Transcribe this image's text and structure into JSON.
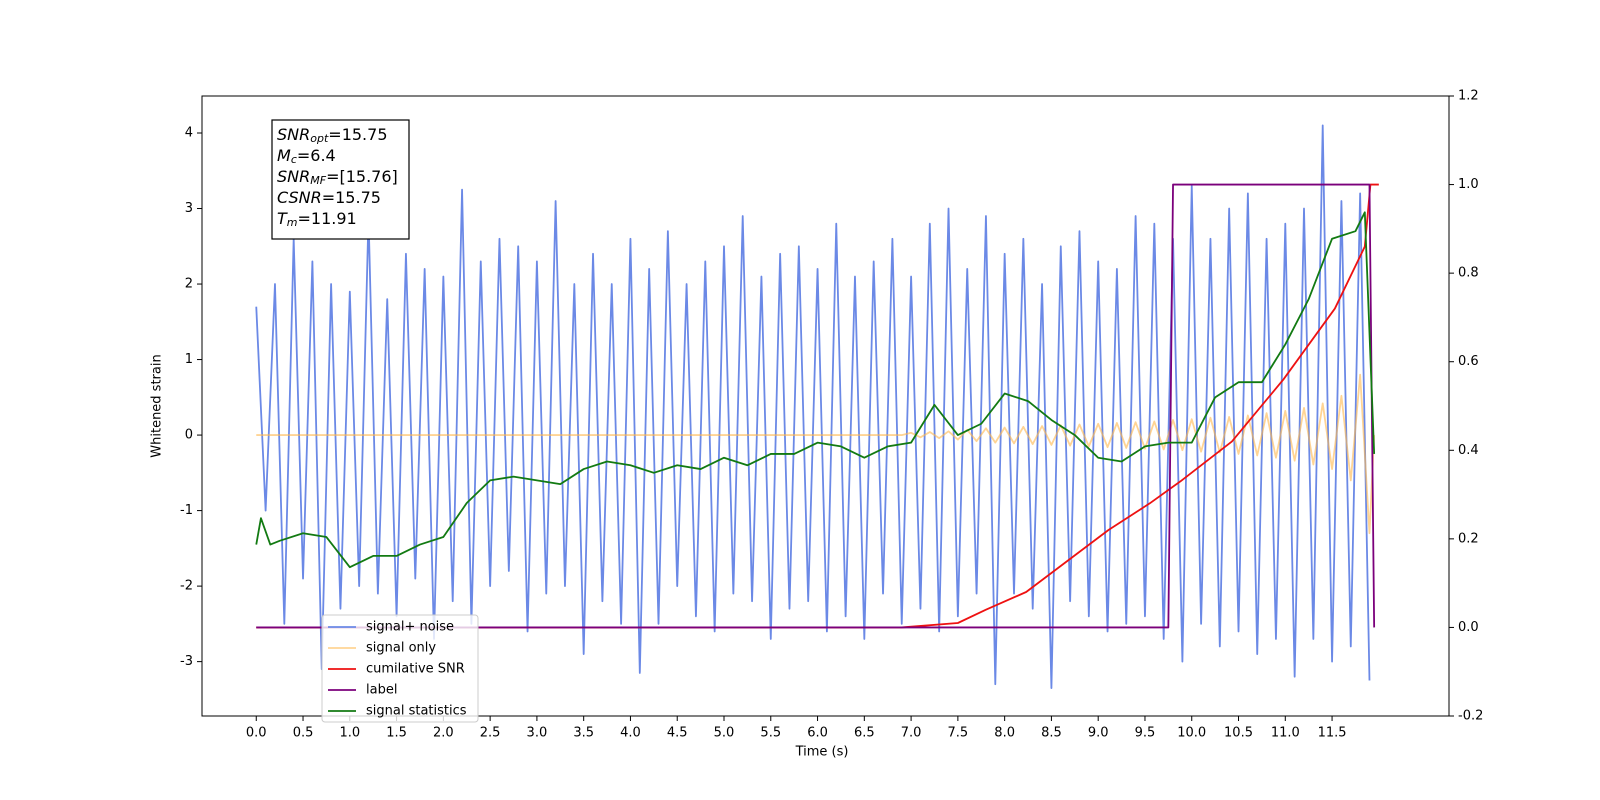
{
  "chart_data": {
    "type": "line",
    "xlabel": "Time (s)",
    "ylabel": "Whitened strain",
    "xlim": [
      -0.58,
      12.75
    ],
    "ylim": [
      -3.72,
      4.49
    ],
    "y2lim": [
      -0.2,
      1.2
    ],
    "xticks": [
      {
        "value": 0,
        "label": "0.0"
      },
      0.5,
      {
        "value": 1,
        "label": "1.0"
      },
      1.5,
      {
        "value": 2,
        "label": "2.0"
      },
      2.5,
      {
        "value": 3,
        "label": "3.0"
      },
      3.5,
      {
        "value": 4,
        "label": "4.0"
      },
      4.5,
      {
        "value": 5,
        "label": "5.0"
      },
      5.5,
      {
        "value": 6,
        "label": "6.0"
      },
      6.5,
      {
        "value": 7,
        "label": "7.0"
      },
      7.5,
      {
        "value": 8,
        "label": "8.0"
      },
      8.5,
      {
        "value": 9,
        "label": "9.0"
      },
      9.5,
      {
        "value": 10,
        "label": "10.0"
      },
      10.5,
      {
        "value": 11,
        "label": "11.0"
      },
      11.5
    ],
    "yticks": [
      -3,
      -2,
      -1,
      0,
      1,
      2,
      3,
      4
    ],
    "y2ticks": [
      -0.2,
      {
        "value": 0,
        "label": "0.0"
      },
      0.2,
      0.4,
      0.6,
      0.8,
      {
        "value": 1,
        "label": "1.0"
      },
      1.2
    ],
    "legend_loc": "lower left",
    "annotations": [
      {
        "base": "SNR",
        "sub": "opt",
        "text": "=15.75"
      },
      {
        "base": "M",
        "sub": "c",
        "text": "=6.4"
      },
      {
        "base": "SNR",
        "sub": "MF",
        "text": "=[15.76]"
      },
      {
        "base": "CSNR",
        "text": "=15.75"
      },
      {
        "base": "T",
        "sub": "m",
        "text": "=11.91"
      }
    ],
    "series": [
      {
        "name": "signal+ noise",
        "color": "#6b89e6",
        "x": [
          0.0,
          0.1,
          0.2,
          0.3,
          0.4,
          0.5,
          0.6,
          0.7,
          0.8,
          0.9,
          1.0,
          1.1,
          1.2,
          1.3,
          1.4,
          1.5,
          1.6,
          1.7,
          1.8,
          1.9,
          2.0,
          2.1,
          2.2,
          2.3,
          2.4,
          2.5,
          2.6,
          2.7,
          2.8,
          2.9,
          3.0,
          3.1,
          3.2,
          3.3,
          3.4,
          3.5,
          3.6,
          3.7,
          3.8,
          3.9,
          4.0,
          4.1,
          4.2,
          4.3,
          4.4,
          4.5,
          4.6,
          4.7,
          4.8,
          4.9,
          5.0,
          5.1,
          5.2,
          5.3,
          5.4,
          5.5,
          5.6,
          5.7,
          5.8,
          5.9,
          6.0,
          6.1,
          6.2,
          6.3,
          6.4,
          6.5,
          6.6,
          6.7,
          6.8,
          6.9,
          7.0,
          7.1,
          7.2,
          7.3,
          7.4,
          7.5,
          7.6,
          7.7,
          7.8,
          7.9,
          8.0,
          8.1,
          8.2,
          8.3,
          8.4,
          8.5,
          8.6,
          8.7,
          8.8,
          8.9,
          9.0,
          9.1,
          9.2,
          9.3,
          9.4,
          9.5,
          9.6,
          9.7,
          9.8,
          9.9,
          10.0,
          10.1,
          10.2,
          10.3,
          10.4,
          10.5,
          10.6,
          10.7,
          10.8,
          10.9,
          11.0,
          11.1,
          11.2,
          11.3,
          11.4,
          11.5,
          11.6,
          11.7,
          11.8,
          11.9
        ],
        "values": [
          1.7,
          -1.0,
          2.0,
          -2.5,
          2.6,
          -1.9,
          2.3,
          -3.1,
          2.0,
          -2.3,
          1.9,
          -2.0,
          2.9,
          -2.1,
          1.8,
          -2.4,
          2.4,
          -1.9,
          2.2,
          -2.7,
          2.1,
          -2.2,
          3.25,
          -2.5,
          2.3,
          -2.0,
          2.6,
          -1.8,
          2.5,
          -2.6,
          2.3,
          -2.1,
          3.1,
          -2.0,
          2.0,
          -2.9,
          2.4,
          -2.2,
          2.0,
          -2.5,
          2.6,
          -3.15,
          2.2,
          -2.5,
          2.7,
          -2.0,
          2.0,
          -2.4,
          2.3,
          -2.6,
          2.5,
          -2.1,
          2.9,
          -2.2,
          2.1,
          -2.7,
          2.4,
          -2.3,
          2.5,
          -2.2,
          2.2,
          -2.6,
          2.8,
          -2.4,
          2.1,
          -2.7,
          2.3,
          -2.1,
          2.6,
          -2.5,
          2.1,
          -2.3,
          2.8,
          -2.6,
          3.0,
          -2.4,
          2.2,
          -2.1,
          2.9,
          -3.3,
          2.4,
          -2.1,
          2.6,
          -2.3,
          2.0,
          -3.35,
          2.5,
          -2.2,
          2.7,
          -2.4,
          2.3,
          -2.6,
          2.2,
          -2.5,
          2.9,
          -2.4,
          2.8,
          -2.7,
          2.6,
          -3.0,
          3.3,
          -2.5,
          2.6,
          -2.8,
          3.0,
          -2.6,
          3.2,
          -2.9,
          2.6,
          -2.7,
          2.8,
          -3.2,
          3.0,
          -2.7,
          4.1,
          -3.0,
          3.1,
          -2.8,
          3.2,
          -3.25
        ]
      },
      {
        "name": "signal only",
        "color": "#ffb84d",
        "x": [
          0.0,
          6.9,
          7.0,
          7.1,
          7.2,
          7.3,
          7.4,
          7.5,
          7.6,
          7.7,
          7.8,
          7.9,
          8.0,
          8.1,
          8.2,
          8.3,
          8.4,
          8.5,
          8.6,
          8.7,
          8.8,
          8.9,
          9.0,
          9.1,
          9.2,
          9.3,
          9.4,
          9.5,
          9.6,
          9.7,
          9.8,
          9.9,
          10.0,
          10.1,
          10.2,
          10.3,
          10.4,
          10.5,
          10.6,
          10.7,
          10.8,
          10.9,
          11.0,
          11.1,
          11.2,
          11.3,
          11.4,
          11.5,
          11.6,
          11.7,
          11.8,
          11.9,
          11.95
        ],
        "values": [
          0,
          0,
          0.03,
          -0.03,
          0.04,
          -0.04,
          0.05,
          -0.06,
          0.07,
          -0.08,
          0.09,
          -0.1,
          0.1,
          -0.11,
          0.11,
          -0.12,
          0.12,
          -0.13,
          0.13,
          -0.14,
          0.14,
          -0.15,
          0.15,
          -0.16,
          0.16,
          -0.17,
          0.17,
          -0.18,
          0.18,
          -0.19,
          0.2,
          -0.2,
          0.21,
          -0.22,
          0.23,
          -0.23,
          0.24,
          -0.25,
          0.26,
          -0.27,
          0.29,
          -0.3,
          0.32,
          -0.34,
          0.36,
          -0.39,
          0.42,
          -0.45,
          0.52,
          -0.6,
          0.8,
          -1.3,
          0
        ]
      },
      {
        "name": "cumilative SNR",
        "color": "#ee1111",
        "axis": "y2",
        "x": [
          0.0,
          6.9,
          7.5,
          7.8,
          8.23,
          8.67,
          9.11,
          9.55,
          9.88,
          10.43,
          10.98,
          11.53,
          11.85,
          11.91,
          12.0
        ],
        "values": [
          0,
          0,
          0.01,
          0.04,
          0.08,
          0.15,
          0.22,
          0.28,
          0.33,
          0.42,
          0.56,
          0.72,
          0.86,
          1.0,
          1.0
        ]
      },
      {
        "name": "label",
        "color": "#7b007b",
        "axis": "y2",
        "x": [
          0.0,
          9.75,
          9.8,
          11.9,
          11.95
        ],
        "values": [
          0,
          0,
          1,
          1,
          0
        ]
      },
      {
        "name": "signal statistics",
        "color": "#127a12",
        "x": [
          0.0,
          0.05,
          0.15,
          0.25,
          0.5,
          0.75,
          1.0,
          1.25,
          1.5,
          1.75,
          2.0,
          2.25,
          2.5,
          2.75,
          3.0,
          3.25,
          3.5,
          3.75,
          4.0,
          4.25,
          4.5,
          4.75,
          5.0,
          5.25,
          5.5,
          5.75,
          6.0,
          6.25,
          6.5,
          6.75,
          7.0,
          7.25,
          7.5,
          7.75,
          8.0,
          8.25,
          8.5,
          8.75,
          9.0,
          9.25,
          9.5,
          9.75,
          10.0,
          10.25,
          10.5,
          10.75,
          11.0,
          11.25,
          11.5,
          11.75,
          11.85,
          11.95
        ],
        "values": [
          -1.45,
          -1.1,
          -1.45,
          -1.4,
          -1.3,
          -1.35,
          -1.75,
          -1.6,
          -1.6,
          -1.45,
          -1.35,
          -0.9,
          -0.6,
          -0.55,
          -0.6,
          -0.65,
          -0.45,
          -0.35,
          -0.4,
          -0.5,
          -0.4,
          -0.45,
          -0.3,
          -0.4,
          -0.25,
          -0.25,
          -0.1,
          -0.15,
          -0.3,
          -0.15,
          -0.1,
          0.4,
          0.0,
          0.15,
          0.55,
          0.45,
          0.2,
          0.0,
          -0.3,
          -0.35,
          -0.15,
          -0.1,
          -0.1,
          0.5,
          0.7,
          0.7,
          1.2,
          1.8,
          2.6,
          2.7,
          2.95,
          -0.25
        ]
      }
    ]
  }
}
